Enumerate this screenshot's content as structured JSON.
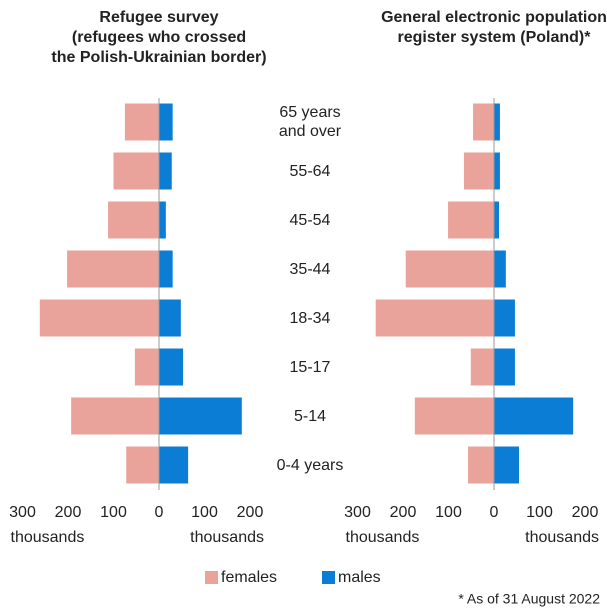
{
  "chart_data": [
    {
      "type": "pyramid",
      "title": "Refugee survey\n(refugees who crossed\nthe Polish-Ukrainian border)",
      "categories": [
        "65 years and over",
        "55-64",
        "45-54",
        "35-44",
        "18-34",
        "15-17",
        "5-14",
        "0-4 years"
      ],
      "series": [
        {
          "name": "females",
          "color": "#e9a39b",
          "values": [
            75,
            100,
            112,
            202,
            262,
            53,
            193,
            72
          ]
        },
        {
          "name": "males",
          "color": "#0b7dd4",
          "values": [
            30,
            28,
            15,
            30,
            48,
            53,
            182,
            64
          ]
        }
      ],
      "xlim": [
        -300,
        200
      ],
      "xticks": [
        {
          "value": -300,
          "label": "300"
        },
        {
          "value": -200,
          "label": "200"
        },
        {
          "value": -100,
          "label": "100"
        },
        0,
        100,
        200
      ],
      "xlabel": "thousands"
    },
    {
      "type": "pyramid",
      "title": "General electronic population\nregister system (Poland)*",
      "series": [
        {
          "color": "#e9a39b",
          "values": [
            46,
            66,
            101,
            194,
            260,
            51,
            174,
            57
          ]
        },
        {
          "color": "#0b7dd4",
          "values": [
            13,
            13,
            11,
            26,
            46,
            46,
            174,
            55
          ]
        }
      ],
      "xlim": [
        -300,
        200
      ],
      "xticks": [
        {
          "value": -300,
          "label": "300"
        },
        {
          "value": -200,
          "label": "200"
        },
        {
          "value": -100,
          "label": "100"
        },
        0,
        100,
        200
      ],
      "xlabel": "thousands",
      "note": "* As of 31 August 2022"
    }
  ]
}
